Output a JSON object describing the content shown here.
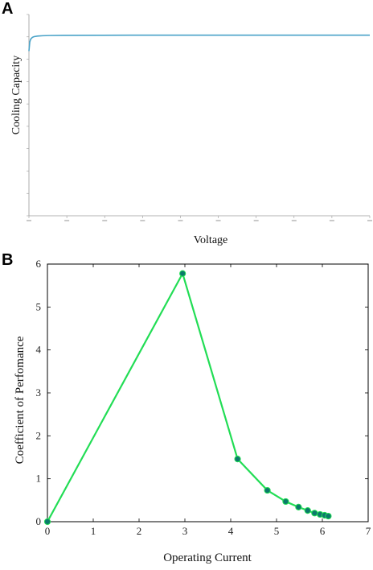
{
  "chart_data": [
    {
      "panel": "A",
      "type": "line",
      "title": "",
      "xlabel": "Voltage",
      "ylabel": "Cooling Capacity",
      "tick_labels_legible": false,
      "series": [
        {
          "color": "#4aa3c8",
          "x": [
            0,
            0.5,
            1,
            2,
            3,
            5,
            8,
            12,
            20,
            40,
            60,
            80,
            100,
            120,
            140,
            160,
            180,
            200
          ],
          "y": [
            0.9,
            0.95,
            0.965,
            0.975,
            0.979,
            0.982,
            0.984,
            0.985,
            0.986,
            0.9865,
            0.987,
            0.987,
            0.987,
            0.987,
            0.987,
            0.987,
            0.987,
            0.987
          ]
        }
      ],
      "xlim": [
        0,
        200
      ],
      "ylim": [
        0,
        1.1
      ]
    },
    {
      "panel": "B",
      "type": "line",
      "title": "",
      "xlabel": "Operating Current",
      "ylabel": "Coefficient of Perfomance",
      "xlim": [
        0,
        7
      ],
      "ylim": [
        0,
        6
      ],
      "xticks": [
        "0",
        "1",
        "2",
        "3",
        "4",
        "5",
        "6",
        "7"
      ],
      "yticks": [
        "0",
        "1",
        "2",
        "3",
        "4",
        "5",
        "6"
      ],
      "grid": false,
      "series": [
        {
          "color": "#22dd55",
          "marker_color": "#0b7a6a",
          "x": [
            0,
            2.95,
            4.15,
            4.8,
            5.2,
            5.48,
            5.68,
            5.83,
            5.95,
            6.05,
            6.13
          ],
          "y": [
            0,
            5.78,
            1.46,
            0.73,
            0.47,
            0.34,
            0.26,
            0.2,
            0.17,
            0.15,
            0.13
          ]
        }
      ]
    }
  ],
  "panels": {
    "a_letter": "A",
    "b_letter": "B"
  }
}
